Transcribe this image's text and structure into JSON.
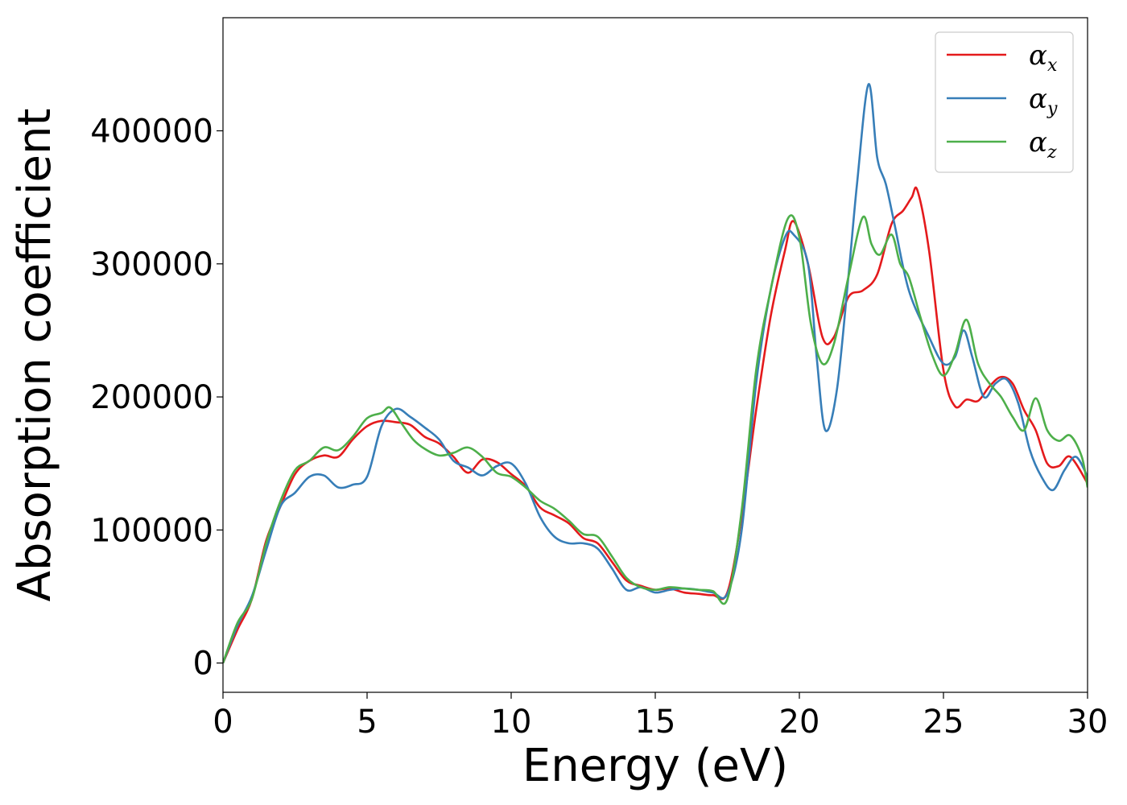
{
  "chart_data": {
    "type": "line",
    "title": "",
    "xlabel": "Energy (eV)",
    "ylabel": "Absorption coefficient",
    "xlim": [
      0,
      30
    ],
    "ylim": [
      -22000,
      485000
    ],
    "xticks": [
      0,
      5,
      10,
      15,
      20,
      25,
      30
    ],
    "yticks": [
      0,
      100000,
      200000,
      300000,
      400000
    ],
    "xtick_labels": [
      "0",
      "5",
      "10",
      "15",
      "20",
      "25",
      "30"
    ],
    "ytick_labels": [
      "0",
      "100000",
      "200000",
      "300000",
      "400000"
    ],
    "grid": false,
    "legend_position": "top-right",
    "series": [
      {
        "name": "α_x",
        "base": "α",
        "sub": "x",
        "color": "#e41a1c",
        "x": [
          0,
          0.5,
          1,
          1.5,
          2,
          2.5,
          3,
          3.5,
          4,
          4.5,
          5,
          5.5,
          6,
          6.5,
          7,
          7.5,
          8,
          8.5,
          9,
          9.5,
          10,
          10.5,
          11,
          11.5,
          12,
          12.5,
          13,
          13.5,
          14,
          14.5,
          15,
          15.5,
          16,
          16.5,
          17,
          17.5,
          18,
          18.5,
          19,
          19.5,
          19.8,
          20.3,
          20.8,
          21.2,
          21.7,
          22.2,
          22.7,
          23.2,
          23.6,
          23.9,
          24.1,
          24.5,
          25,
          25.4,
          25.8,
          26.2,
          26.6,
          27,
          27.4,
          27.8,
          28.2,
          28.6,
          29,
          29.4,
          30
        ],
        "y": [
          0,
          25000,
          48000,
          92000,
          118000,
          142000,
          152000,
          156000,
          155000,
          168000,
          178000,
          182000,
          181000,
          179000,
          170000,
          165000,
          155000,
          143000,
          153000,
          151000,
          142000,
          133000,
          117000,
          111000,
          105000,
          94000,
          90000,
          76000,
          62000,
          58000,
          55000,
          56000,
          53000,
          52000,
          51000,
          53000,
          110000,
          190000,
          260000,
          310000,
          332000,
          300000,
          245000,
          245000,
          275000,
          280000,
          292000,
          330000,
          340000,
          350000,
          355000,
          310000,
          220000,
          193000,
          198000,
          197000,
          208000,
          215000,
          210000,
          190000,
          175000,
          150000,
          148000,
          155000,
          135000
        ]
      },
      {
        "name": "α_y",
        "base": "α",
        "sub": "y",
        "color": "#377eb8",
        "x": [
          0,
          0.5,
          1,
          1.5,
          2,
          2.5,
          3,
          3.5,
          4,
          4.5,
          5,
          5.5,
          6,
          6.5,
          7,
          7.5,
          8,
          8.5,
          9,
          9.5,
          10,
          10.5,
          11,
          11.5,
          12,
          12.5,
          13,
          13.5,
          14,
          14.5,
          15,
          15.5,
          16,
          16.5,
          17,
          17.5,
          18,
          18.5,
          19,
          19.5,
          19.8,
          20.3,
          20.6,
          20.9,
          21.3,
          21.7,
          22,
          22.4,
          22.7,
          23,
          23.3,
          23.8,
          24.5,
          25,
          25.4,
          25.7,
          26,
          26.4,
          26.8,
          27.2,
          27.6,
          28,
          28.4,
          28.8,
          29.2,
          29.6,
          30
        ],
        "y": [
          0,
          28000,
          50000,
          85000,
          118000,
          128000,
          140000,
          141000,
          132000,
          134000,
          140000,
          178000,
          191000,
          185000,
          177000,
          168000,
          152000,
          147000,
          141000,
          148000,
          150000,
          135000,
          110000,
          95000,
          90000,
          90000,
          86000,
          71000,
          55000,
          57000,
          53000,
          55000,
          56000,
          55000,
          53000,
          52000,
          100000,
          210000,
          280000,
          320000,
          322000,
          300000,
          230000,
          175000,
          205000,
          290000,
          360000,
          435000,
          380000,
          360000,
          330000,
          280000,
          245000,
          225000,
          230000,
          250000,
          230000,
          200000,
          210000,
          213000,
          195000,
          160000,
          140000,
          130000,
          145000,
          155000,
          140000
        ]
      },
      {
        "name": "α_z",
        "base": "α",
        "sub": "z",
        "color": "#4daf4a",
        "x": [
          0,
          0.5,
          1,
          1.5,
          2,
          2.5,
          3,
          3.5,
          4,
          4.5,
          5,
          5.5,
          5.8,
          6.2,
          6.6,
          7,
          7.5,
          8,
          8.5,
          9,
          9.5,
          10,
          10.5,
          11,
          11.5,
          12,
          12.5,
          13,
          13.5,
          14,
          14.5,
          15,
          15.5,
          16,
          16.5,
          17,
          17.5,
          18,
          18.5,
          19,
          19.6,
          20,
          20.4,
          20.8,
          21.2,
          21.7,
          22.2,
          22.5,
          22.8,
          23.2,
          23.5,
          23.8,
          24.2,
          24.6,
          25,
          25.4,
          25.8,
          26.2,
          26.6,
          27,
          27.4,
          27.8,
          28.2,
          28.6,
          29,
          29.4,
          29.8,
          30
        ],
        "y": [
          0,
          30000,
          48000,
          90000,
          122000,
          145000,
          152000,
          162000,
          160000,
          170000,
          184000,
          188000,
          192000,
          180000,
          168000,
          161000,
          156000,
          158000,
          162000,
          155000,
          143000,
          140000,
          132000,
          122000,
          116000,
          107000,
          97000,
          95000,
          80000,
          64000,
          57000,
          55000,
          57000,
          56000,
          55000,
          54000,
          48000,
          115000,
          220000,
          280000,
          334000,
          320000,
          255000,
          225000,
          240000,
          290000,
          335000,
          315000,
          307000,
          322000,
          300000,
          290000,
          260000,
          232000,
          216000,
          232000,
          258000,
          225000,
          210000,
          200000,
          185000,
          175000,
          199000,
          175000,
          167000,
          171000,
          155000,
          132000
        ]
      }
    ]
  }
}
